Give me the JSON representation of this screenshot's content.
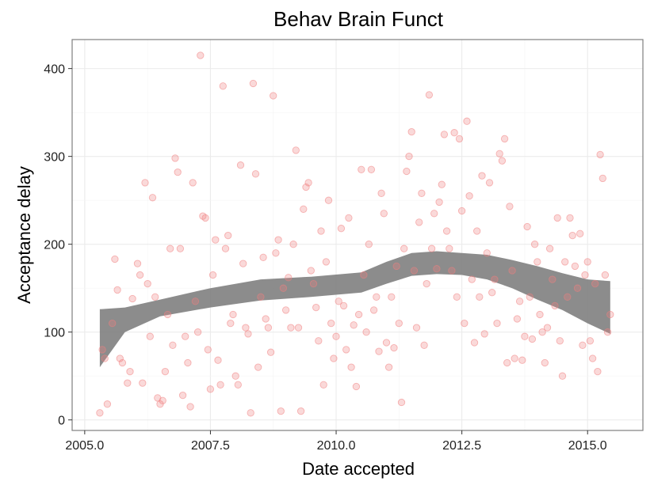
{
  "chart_data": {
    "type": "scatter",
    "title": "Behav Brain Funct",
    "xlabel": "Date accepted",
    "ylabel": "Acceptance delay",
    "xlim": [
      2004.75,
      2016.1
    ],
    "ylim": [
      -12,
      433
    ],
    "x_ticks": [
      2005.0,
      2007.5,
      2010.0,
      2012.5,
      2015.0
    ],
    "x_tick_labels": [
      "2005.0",
      "2007.5",
      "2010.0",
      "2012.5",
      "2015.0"
    ],
    "y_ticks": [
      0,
      100,
      200,
      300,
      400
    ],
    "y_tick_labels": [
      "0",
      "100",
      "200",
      "300",
      "400"
    ],
    "grid": true,
    "point_color": "#f08080",
    "band_color": "#7f7f7f",
    "points": [
      [
        2005.3,
        8
      ],
      [
        2005.35,
        80
      ],
      [
        2005.4,
        70
      ],
      [
        2005.45,
        18
      ],
      [
        2005.55,
        110
      ],
      [
        2005.6,
        183
      ],
      [
        2005.65,
        148
      ],
      [
        2005.7,
        70
      ],
      [
        2005.75,
        65
      ],
      [
        2005.85,
        42
      ],
      [
        2005.9,
        55
      ],
      [
        2005.95,
        138
      ],
      [
        2006.05,
        178
      ],
      [
        2006.1,
        165
      ],
      [
        2006.15,
        42
      ],
      [
        2006.2,
        270
      ],
      [
        2006.25,
        155
      ],
      [
        2006.3,
        95
      ],
      [
        2006.35,
        253
      ],
      [
        2006.4,
        140
      ],
      [
        2006.45,
        25
      ],
      [
        2006.5,
        18
      ],
      [
        2006.55,
        22
      ],
      [
        2006.6,
        55
      ],
      [
        2006.65,
        120
      ],
      [
        2006.7,
        195
      ],
      [
        2006.75,
        85
      ],
      [
        2006.8,
        298
      ],
      [
        2006.85,
        282
      ],
      [
        2006.9,
        195
      ],
      [
        2006.95,
        28
      ],
      [
        2007.0,
        95
      ],
      [
        2007.05,
        65
      ],
      [
        2007.1,
        15
      ],
      [
        2007.15,
        270
      ],
      [
        2007.2,
        135
      ],
      [
        2007.25,
        100
      ],
      [
        2007.3,
        415
      ],
      [
        2007.35,
        232
      ],
      [
        2007.4,
        230
      ],
      [
        2007.45,
        80
      ],
      [
        2007.5,
        35
      ],
      [
        2007.55,
        165
      ],
      [
        2007.6,
        205
      ],
      [
        2007.65,
        68
      ],
      [
        2007.7,
        40
      ],
      [
        2007.75,
        380
      ],
      [
        2007.8,
        195
      ],
      [
        2007.85,
        210
      ],
      [
        2007.9,
        110
      ],
      [
        2007.95,
        120
      ],
      [
        2008.0,
        50
      ],
      [
        2008.05,
        40
      ],
      [
        2008.1,
        290
      ],
      [
        2008.15,
        178
      ],
      [
        2008.2,
        105
      ],
      [
        2008.25,
        98
      ],
      [
        2008.3,
        8
      ],
      [
        2008.35,
        383
      ],
      [
        2008.4,
        280
      ],
      [
        2008.45,
        60
      ],
      [
        2008.5,
        140
      ],
      [
        2008.55,
        185
      ],
      [
        2008.6,
        115
      ],
      [
        2008.65,
        105
      ],
      [
        2008.7,
        77
      ],
      [
        2008.75,
        369
      ],
      [
        2008.8,
        190
      ],
      [
        2008.85,
        205
      ],
      [
        2008.9,
        10
      ],
      [
        2008.95,
        150
      ],
      [
        2009.0,
        125
      ],
      [
        2009.05,
        162
      ],
      [
        2009.1,
        105
      ],
      [
        2009.15,
        200
      ],
      [
        2009.2,
        307
      ],
      [
        2009.25,
        105
      ],
      [
        2009.3,
        10
      ],
      [
        2009.35,
        240
      ],
      [
        2009.4,
        265
      ],
      [
        2009.45,
        270
      ],
      [
        2009.5,
        170
      ],
      [
        2009.55,
        155
      ],
      [
        2009.6,
        128
      ],
      [
        2009.65,
        90
      ],
      [
        2009.7,
        215
      ],
      [
        2009.75,
        40
      ],
      [
        2009.8,
        180
      ],
      [
        2009.85,
        250
      ],
      [
        2009.9,
        110
      ],
      [
        2009.95,
        70
      ],
      [
        2010.0,
        95
      ],
      [
        2010.05,
        135
      ],
      [
        2010.1,
        218
      ],
      [
        2010.15,
        130
      ],
      [
        2010.2,
        80
      ],
      [
        2010.25,
        230
      ],
      [
        2010.3,
        60
      ],
      [
        2010.35,
        108
      ],
      [
        2010.4,
        38
      ],
      [
        2010.45,
        120
      ],
      [
        2010.5,
        285
      ],
      [
        2010.55,
        165
      ],
      [
        2010.6,
        100
      ],
      [
        2010.65,
        200
      ],
      [
        2010.7,
        285
      ],
      [
        2010.75,
        125
      ],
      [
        2010.8,
        140
      ],
      [
        2010.85,
        78
      ],
      [
        2010.9,
        258
      ],
      [
        2010.95,
        235
      ],
      [
        2011.0,
        88
      ],
      [
        2011.05,
        60
      ],
      [
        2011.1,
        140
      ],
      [
        2011.15,
        82
      ],
      [
        2011.2,
        175
      ],
      [
        2011.25,
        110
      ],
      [
        2011.3,
        20
      ],
      [
        2011.35,
        195
      ],
      [
        2011.4,
        283
      ],
      [
        2011.45,
        300
      ],
      [
        2011.5,
        328
      ],
      [
        2011.55,
        170
      ],
      [
        2011.6,
        105
      ],
      [
        2011.65,
        225
      ],
      [
        2011.7,
        258
      ],
      [
        2011.75,
        85
      ],
      [
        2011.8,
        155
      ],
      [
        2011.85,
        370
      ],
      [
        2011.9,
        195
      ],
      [
        2011.95,
        235
      ],
      [
        2012.0,
        172
      ],
      [
        2012.05,
        248
      ],
      [
        2012.1,
        268
      ],
      [
        2012.15,
        325
      ],
      [
        2012.2,
        215
      ],
      [
        2012.25,
        195
      ],
      [
        2012.3,
        170
      ],
      [
        2012.35,
        327
      ],
      [
        2012.4,
        140
      ],
      [
        2012.45,
        320
      ],
      [
        2012.5,
        238
      ],
      [
        2012.55,
        110
      ],
      [
        2012.6,
        340
      ],
      [
        2012.65,
        255
      ],
      [
        2012.7,
        160
      ],
      [
        2012.75,
        88
      ],
      [
        2012.8,
        215
      ],
      [
        2012.85,
        140
      ],
      [
        2012.9,
        278
      ],
      [
        2012.95,
        98
      ],
      [
        2013.0,
        190
      ],
      [
        2013.05,
        270
      ],
      [
        2013.1,
        145
      ],
      [
        2013.15,
        160
      ],
      [
        2013.2,
        110
      ],
      [
        2013.25,
        303
      ],
      [
        2013.3,
        295
      ],
      [
        2013.35,
        320
      ],
      [
        2013.4,
        65
      ],
      [
        2013.45,
        243
      ],
      [
        2013.5,
        170
      ],
      [
        2013.55,
        70
      ],
      [
        2013.6,
        115
      ],
      [
        2013.65,
        135
      ],
      [
        2013.7,
        68
      ],
      [
        2013.75,
        95
      ],
      [
        2013.8,
        220
      ],
      [
        2013.85,
        140
      ],
      [
        2013.9,
        92
      ],
      [
        2013.95,
        200
      ],
      [
        2014.0,
        180
      ],
      [
        2014.05,
        120
      ],
      [
        2014.1,
        100
      ],
      [
        2014.15,
        65
      ],
      [
        2014.2,
        105
      ],
      [
        2014.25,
        195
      ],
      [
        2014.3,
        160
      ],
      [
        2014.35,
        130
      ],
      [
        2014.4,
        230
      ],
      [
        2014.45,
        90
      ],
      [
        2014.5,
        50
      ],
      [
        2014.55,
        180
      ],
      [
        2014.6,
        140
      ],
      [
        2014.65,
        230
      ],
      [
        2014.7,
        210
      ],
      [
        2014.75,
        175
      ],
      [
        2014.8,
        150
      ],
      [
        2014.85,
        212
      ],
      [
        2014.9,
        85
      ],
      [
        2014.95,
        165
      ],
      [
        2015.0,
        180
      ],
      [
        2015.05,
        90
      ],
      [
        2015.1,
        70
      ],
      [
        2015.15,
        155
      ],
      [
        2015.2,
        55
      ],
      [
        2015.25,
        302
      ],
      [
        2015.3,
        275
      ],
      [
        2015.35,
        165
      ],
      [
        2015.4,
        100
      ],
      [
        2015.45,
        120
      ]
    ],
    "smooth_band": {
      "x": [
        2005.3,
        2005.8,
        2006.5,
        2007.5,
        2008.5,
        2009.5,
        2010.5,
        2011.0,
        2011.5,
        2012.0,
        2012.5,
        2013.0,
        2013.5,
        2014.0,
        2014.5,
        2015.0,
        2015.45
      ],
      "upper": [
        126,
        128,
        137,
        150,
        160,
        163,
        168,
        180,
        190,
        192,
        190,
        188,
        182,
        175,
        167,
        160,
        158
      ],
      "lower": [
        60,
        100,
        118,
        128,
        136,
        140,
        145,
        155,
        164,
        166,
        165,
        160,
        150,
        137,
        125,
        110,
        98
      ]
    }
  }
}
